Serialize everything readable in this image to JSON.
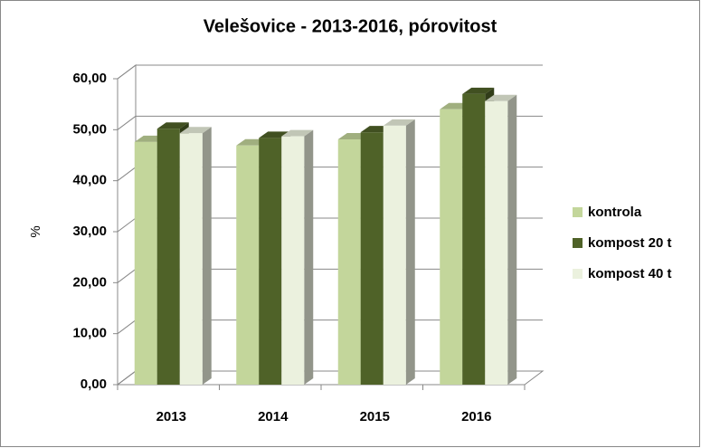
{
  "chart_data": {
    "type": "bar3d",
    "title": "Velešovice - 2013-2016, pórovitost",
    "y_label": "%",
    "categories": [
      "2013",
      "2014",
      "2015",
      "2016"
    ],
    "series": [
      {
        "name": "kontrola",
        "color": "#c3d69b",
        "values": [
          47.6,
          46.9,
          48.1,
          54.0
        ]
      },
      {
        "name": "kompost 20 t",
        "color": "#4f6228",
        "values": [
          50.2,
          48.4,
          49.5,
          57.0
        ]
      },
      {
        "name": "kompost 40 t",
        "color": "#ebf1de",
        "values": [
          49.3,
          48.7,
          50.8,
          55.6
        ]
      }
    ],
    "ylim": [
      0,
      60
    ],
    "yticks": [
      {
        "value": 0,
        "label": "0,00"
      },
      {
        "value": 10,
        "label": "10,00"
      },
      {
        "value": 20,
        "label": "20,00"
      },
      {
        "value": 30,
        "label": "30,00"
      },
      {
        "value": 40,
        "label": "40,00"
      },
      {
        "value": 50,
        "label": "50,00"
      },
      {
        "value": 60,
        "label": "60,00"
      }
    ],
    "grid": true,
    "legend": "right"
  }
}
